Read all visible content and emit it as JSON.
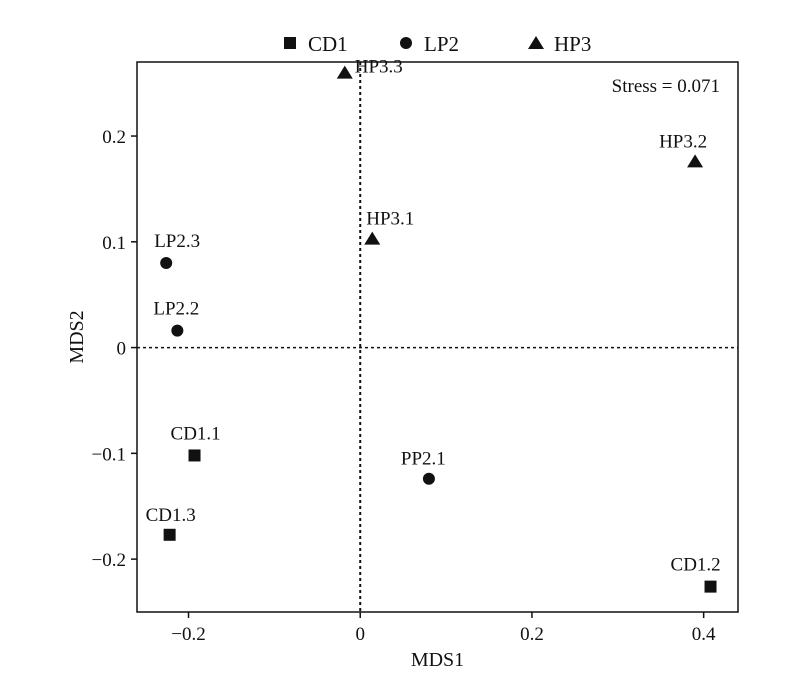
{
  "chart_data": {
    "type": "scatter",
    "title": "",
    "xlabel": "MDS1",
    "ylabel": "MDS2",
    "xlim": [
      -0.26,
      0.44
    ],
    "ylim": [
      -0.25,
      0.27
    ],
    "xticks": [
      -0.2,
      0,
      0.2,
      0.4
    ],
    "xtick_labels": [
      "−0.2",
      "0",
      "0.2",
      "0.4"
    ],
    "yticks": [
      -0.2,
      -0.1,
      0,
      0.1,
      0.2
    ],
    "ytick_labels": [
      "−0.2",
      "−0.1",
      "0",
      "0.1",
      "0.2"
    ],
    "reference_lines": {
      "x": 0,
      "y": 0,
      "style": "dotted"
    },
    "grid": false,
    "legend_position": "top-outside",
    "annotation": "Stress = 0.071",
    "series": [
      {
        "name": "CD1",
        "marker": "square",
        "points": [
          {
            "label": "CD1.1",
            "x": -0.193,
            "y": -0.102
          },
          {
            "label": "CD1.2",
            "x": 0.408,
            "y": -0.226
          },
          {
            "label": "CD1.3",
            "x": -0.222,
            "y": -0.177
          }
        ]
      },
      {
        "name": "LP2",
        "marker": "circle",
        "points": [
          {
            "label": "LP2.2",
            "x": -0.213,
            "y": 0.016
          },
          {
            "label": "LP2.3",
            "x": -0.226,
            "y": 0.08
          },
          {
            "label": "PP2.1",
            "x": 0.08,
            "y": -0.124
          }
        ]
      },
      {
        "name": "HP3",
        "marker": "triangle",
        "points": [
          {
            "label": "HP3.1",
            "x": 0.014,
            "y": 0.103
          },
          {
            "label": "HP3.2",
            "x": 0.39,
            "y": 0.176
          },
          {
            "label": "HP3.3",
            "x": -0.018,
            "y": 0.26
          }
        ]
      }
    ]
  }
}
